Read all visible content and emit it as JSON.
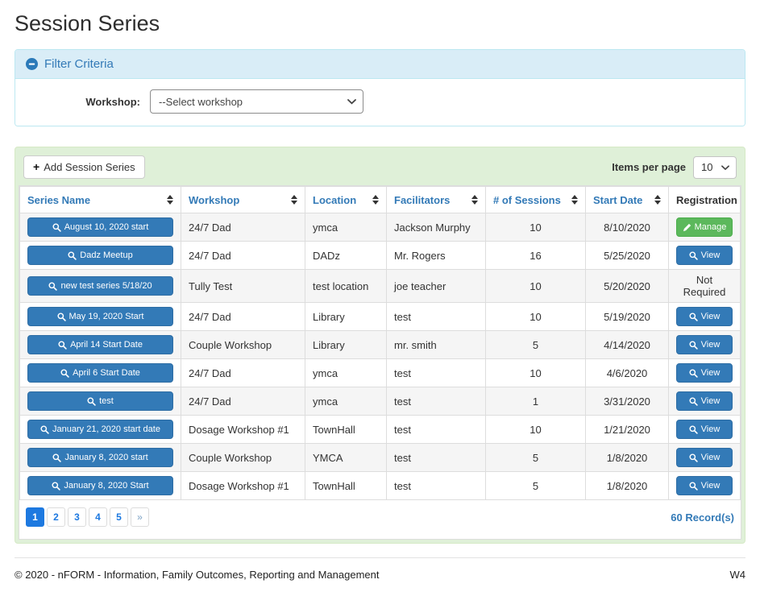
{
  "page": {
    "title": "Session Series"
  },
  "filter": {
    "header": "Filter Criteria",
    "workshop_label": "Workshop:",
    "workshop_value": "--Select workshop"
  },
  "toolbar": {
    "add_button": "Add Session Series",
    "add_icon": "+",
    "items_per_page_label": "Items per page",
    "items_per_page_value": "10"
  },
  "table": {
    "columns": [
      {
        "label": "Series Name",
        "sortable": true
      },
      {
        "label": "Workshop",
        "sortable": true
      },
      {
        "label": "Location",
        "sortable": true
      },
      {
        "label": "Facilitators",
        "sortable": true
      },
      {
        "label": "# of Sessions",
        "sortable": true
      },
      {
        "label": "Start Date",
        "sortable": true
      },
      {
        "label": "Registration",
        "sortable": false
      }
    ],
    "rows": [
      {
        "series_name": "August 10, 2020 start",
        "workshop": "24/7 Dad",
        "location": "ymca",
        "facilitators": "Jackson Murphy",
        "sessions": "10",
        "start_date": "8/10/2020",
        "registration": {
          "type": "manage",
          "label": "Manage"
        }
      },
      {
        "series_name": "Dadz Meetup",
        "workshop": "24/7 Dad",
        "location": "DADz",
        "facilitators": "Mr. Rogers",
        "sessions": "16",
        "start_date": "5/25/2020",
        "registration": {
          "type": "view",
          "label": "View"
        }
      },
      {
        "series_name": "new test series 5/18/20",
        "workshop": "Tully Test",
        "location": "test location",
        "facilitators": "joe teacher",
        "sessions": "10",
        "start_date": "5/20/2020",
        "registration": {
          "type": "text",
          "label": "Not Required"
        }
      },
      {
        "series_name": "May 19, 2020 Start",
        "workshop": "24/7 Dad",
        "location": "Library",
        "facilitators": "test",
        "sessions": "10",
        "start_date": "5/19/2020",
        "registration": {
          "type": "view",
          "label": "View"
        }
      },
      {
        "series_name": "April 14 Start Date",
        "workshop": "Couple Workshop",
        "location": "Library",
        "facilitators": "mr. smith",
        "sessions": "5",
        "start_date": "4/14/2020",
        "registration": {
          "type": "view",
          "label": "View"
        }
      },
      {
        "series_name": "April 6 Start Date",
        "workshop": "24/7 Dad",
        "location": "ymca",
        "facilitators": "test",
        "sessions": "10",
        "start_date": "4/6/2020",
        "registration": {
          "type": "view",
          "label": "View"
        }
      },
      {
        "series_name": "test",
        "workshop": "24/7 Dad",
        "location": "ymca",
        "facilitators": "test",
        "sessions": "1",
        "start_date": "3/31/2020",
        "registration": {
          "type": "view",
          "label": "View"
        }
      },
      {
        "series_name": "January 21, 2020 start date",
        "workshop": "Dosage Workshop #1",
        "location": "TownHall",
        "facilitators": "test",
        "sessions": "10",
        "start_date": "1/21/2020",
        "registration": {
          "type": "view",
          "label": "View"
        }
      },
      {
        "series_name": "January 8, 2020 start",
        "workshop": "Couple Workshop",
        "location": "YMCA",
        "facilitators": "test",
        "sessions": "5",
        "start_date": "1/8/2020",
        "registration": {
          "type": "view",
          "label": "View"
        }
      },
      {
        "series_name": "January 8, 2020 Start",
        "workshop": "Dosage Workshop #1",
        "location": "TownHall",
        "facilitators": "test",
        "sessions": "5",
        "start_date": "1/8/2020",
        "registration": {
          "type": "view",
          "label": "View"
        }
      }
    ]
  },
  "pagination": {
    "pages": [
      "1",
      "2",
      "3",
      "4",
      "5"
    ],
    "active": "1",
    "next": "»",
    "records": "60 Record(s)"
  },
  "footer": {
    "copyright": "© 2020 - nFORM - Information, Family Outcomes, Reporting and Management",
    "version": "W4"
  },
  "icons": {
    "collapse": "minus-circle-icon",
    "sort": "sort-arrows-icon",
    "search": "magnifier-icon",
    "edit": "pencil-icon",
    "add": "plus-icon",
    "dropdown": "chevron-down-icon"
  },
  "colors": {
    "primary_blue": "#337ab7",
    "primary_blue_border": "#2e6da4",
    "success_green": "#5cb85c",
    "success_green_border": "#4cae4c",
    "filter_header_bg": "#d9edf7",
    "filter_border": "#bce8f1",
    "panel_green_bg": "#dff0d8",
    "panel_green_border": "#d6e9c6",
    "pagination_blue": "#1d79e0",
    "stripe_gray": "#f5f5f5",
    "table_border": "#dddddd"
  }
}
